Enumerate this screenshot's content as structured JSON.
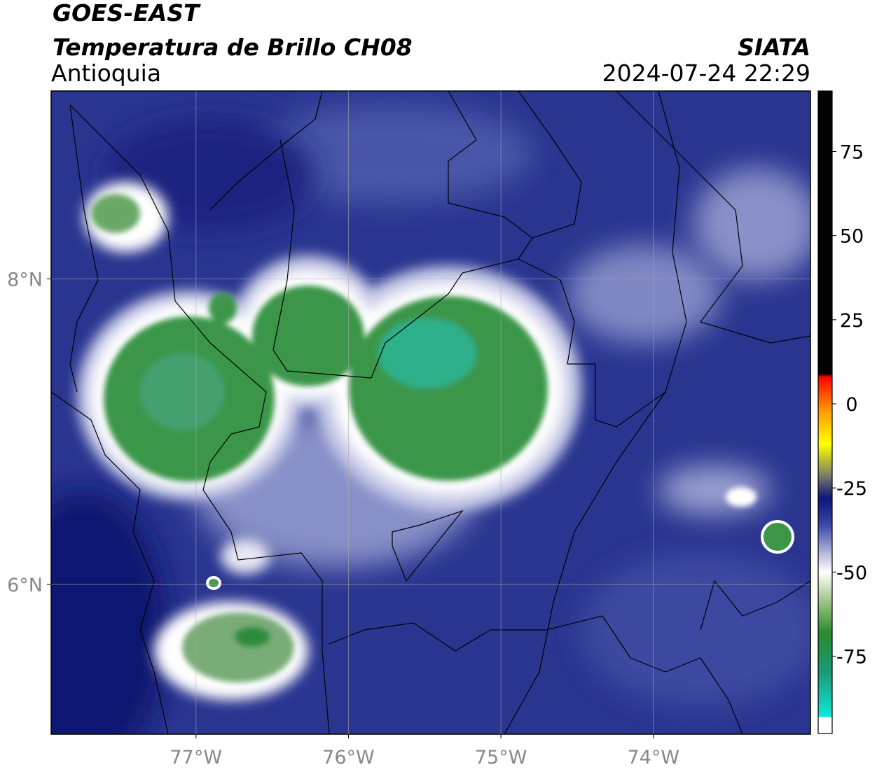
{
  "chart_data": {
    "type": "map",
    "title": "GOES-EAST",
    "subtitle": "Temperatura de Brillo CH08",
    "region": "Antioquia",
    "source": "SIATA",
    "datetime": "2024-07-24 22:29",
    "xlim": [
      -77.95,
      -72.97
    ],
    "ylim": [
      5.02,
      9.23
    ],
    "xticks": [
      {
        "value": -77,
        "label": "77°W"
      },
      {
        "value": -76,
        "label": "76°W"
      },
      {
        "value": -75,
        "label": "75°W"
      },
      {
        "value": -74,
        "label": "74°W"
      }
    ],
    "yticks": [
      {
        "value": 6,
        "label": "6°N"
      },
      {
        "value": 8,
        "label": "8°N"
      }
    ],
    "grid": true,
    "colorbar": {
      "lim": [
        -98,
        93
      ],
      "ticks": [
        -75,
        -50,
        -25,
        0,
        25,
        50,
        75
      ],
      "stops": [
        {
          "value": -98,
          "color": "#ffffff"
        },
        {
          "value": -93,
          "color": "#ffffff"
        },
        {
          "value": -93,
          "color": "#11e8d8"
        },
        {
          "value": -80,
          "color": "#1a9a7a"
        },
        {
          "value": -68,
          "color": "#2a8a2a"
        },
        {
          "value": -58,
          "color": "#a8c890"
        },
        {
          "value": -50,
          "color": "#ffffff"
        },
        {
          "value": -44,
          "color": "#b0b4d8"
        },
        {
          "value": -36,
          "color": "#3a48a8"
        },
        {
          "value": -28,
          "color": "#0c1478"
        },
        {
          "value": -22,
          "color": "#707070"
        },
        {
          "value": -12,
          "color": "#ffff00"
        },
        {
          "value": -2,
          "color": "#ff9a00"
        },
        {
          "value": 8,
          "color": "#ff0000"
        },
        {
          "value": 9,
          "color": "#000000"
        },
        {
          "value": 93,
          "color": "#000000"
        }
      ]
    }
  }
}
